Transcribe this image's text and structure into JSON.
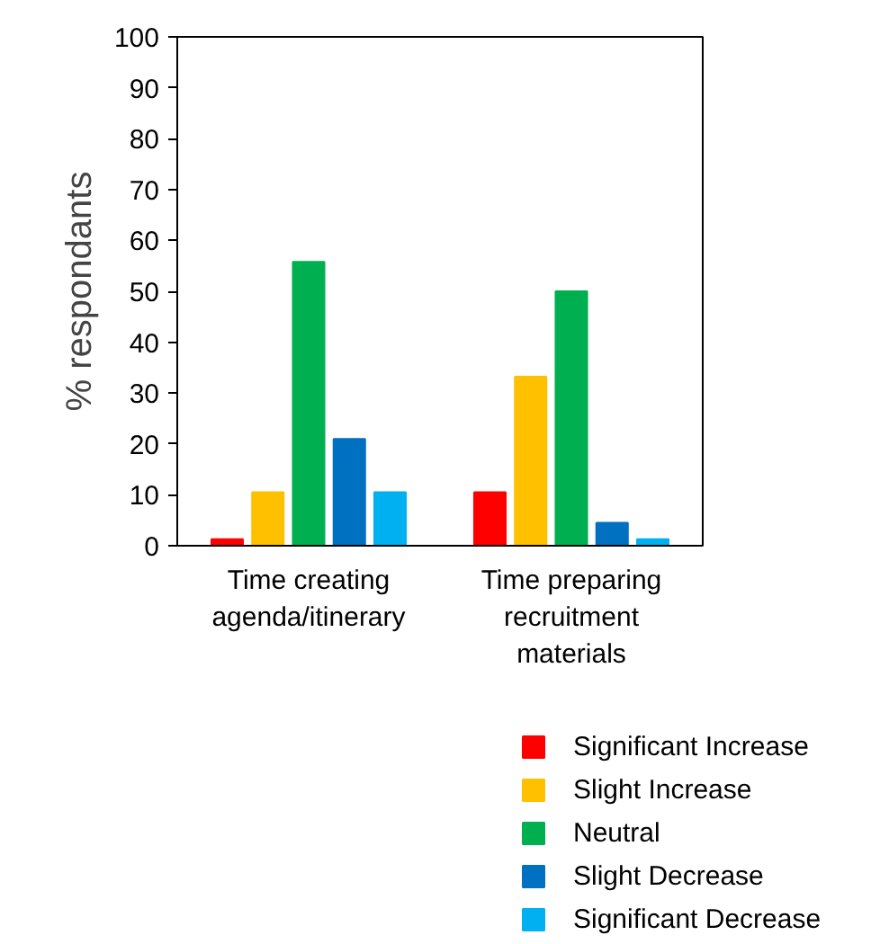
{
  "chart_data": {
    "type": "bar",
    "ylabel": "% respondants",
    "categories": [
      "Time creating agenda/itinerary",
      "Time preparing recruitment materials"
    ],
    "series": [
      {
        "name": "Significant Increase",
        "color": "#ff0000",
        "values": [
          1.3,
          10.5
        ]
      },
      {
        "name": "Slight Increase",
        "color": "#ffc000",
        "values": [
          10.5,
          33.2
        ]
      },
      {
        "name": "Neutral",
        "color": "#00b050",
        "values": [
          55.8,
          50
        ]
      },
      {
        "name": "Slight Decrease",
        "color": "#0070c0",
        "values": [
          21,
          4.5
        ]
      },
      {
        "name": "Significant Decrease",
        "color": "#00b0f0",
        "values": [
          10.5,
          1.3
        ]
      }
    ],
    "ylim": [
      0,
      100
    ],
    "yticks": [
      0,
      10,
      20,
      30,
      40,
      50,
      60,
      70,
      80,
      90,
      100
    ],
    "grid": false,
    "legend": "bottom right"
  }
}
